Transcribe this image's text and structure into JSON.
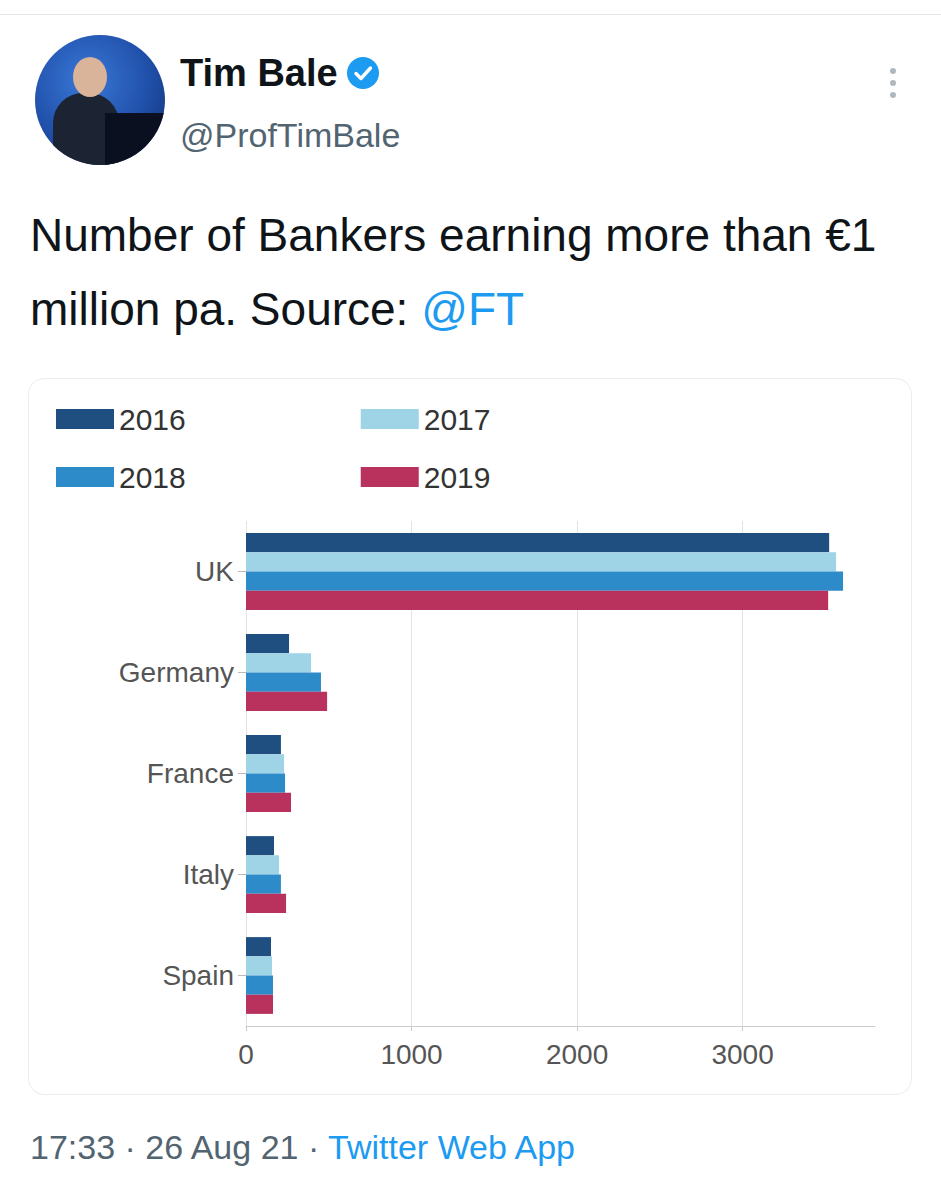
{
  "tweet": {
    "name": "Tim Bale",
    "handle": "@ProfTimBale",
    "text": "Number of Bankers earning more than €1 million pa. Source:",
    "mention": "@FT",
    "timestamp": "17:33 · 26 Aug 21 ·",
    "client": "Twitter Web App"
  },
  "chart_data": {
    "type": "bar",
    "orientation": "horizontal",
    "categories": [
      "UK",
      "Germany",
      "France",
      "Italy",
      "Spain"
    ],
    "series": [
      {
        "name": "2016",
        "color": "#1e4f80",
        "values": [
          3523,
          260,
          211,
          169,
          151
        ]
      },
      {
        "name": "2017",
        "color": "#9fd3e6",
        "values": [
          3565,
          393,
          230,
          200,
          157
        ]
      },
      {
        "name": "2018",
        "color": "#2e8bc9",
        "values": [
          3607,
          453,
          236,
          211,
          163
        ]
      },
      {
        "name": "2019",
        "color": "#b8325d",
        "values": [
          3517,
          490,
          272,
          242,
          163
        ]
      }
    ],
    "xlim": [
      0,
      3800
    ],
    "xticks": [
      0,
      1000,
      2000,
      3000
    ],
    "grid": true,
    "legend": "top-left"
  }
}
